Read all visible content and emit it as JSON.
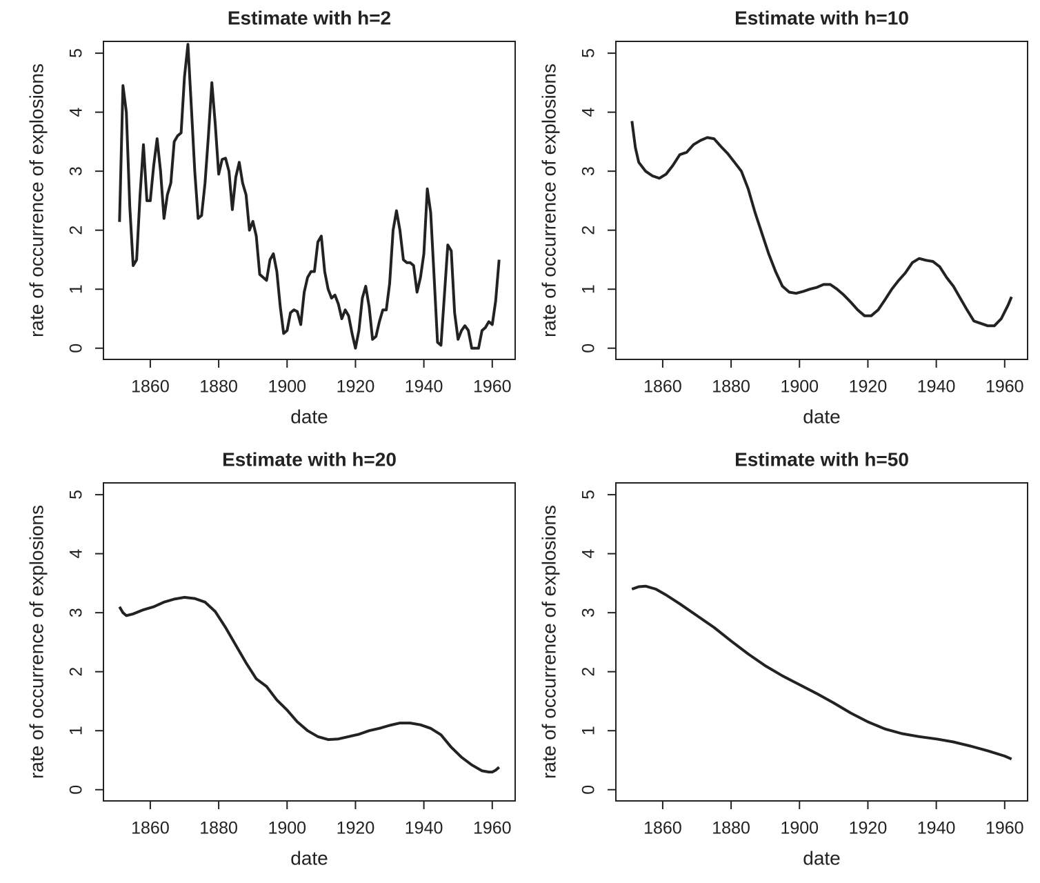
{
  "chart_data": [
    {
      "type": "line",
      "title": "Estimate with h=2",
      "xlabel": "date",
      "ylabel": "rate of occurrence of explosions",
      "color": "#222222",
      "x": [
        1851,
        1852,
        1853,
        1854,
        1855,
        1856,
        1857,
        1858,
        1859,
        1860,
        1861,
        1862,
        1863,
        1864,
        1865,
        1866,
        1867,
        1868,
        1869,
        1870,
        1871,
        1872,
        1873,
        1874,
        1875,
        1876,
        1877,
        1878,
        1879,
        1880,
        1881,
        1882,
        1883,
        1884,
        1885,
        1886,
        1887,
        1888,
        1889,
        1890,
        1891,
        1892,
        1893,
        1894,
        1895,
        1896,
        1897,
        1898,
        1899,
        1900,
        1901,
        1902,
        1903,
        1904,
        1905,
        1906,
        1907,
        1908,
        1909,
        1910,
        1911,
        1912,
        1913,
        1914,
        1915,
        1916,
        1917,
        1918,
        1919,
        1920,
        1921,
        1922,
        1923,
        1924,
        1925,
        1926,
        1927,
        1928,
        1929,
        1930,
        1931,
        1932,
        1933,
        1934,
        1935,
        1936,
        1937,
        1938,
        1939,
        1940,
        1941,
        1942,
        1943,
        1944,
        1945,
        1946,
        1947,
        1948,
        1949,
        1950,
        1951,
        1952,
        1953,
        1954,
        1955,
        1956,
        1957,
        1958,
        1959,
        1960,
        1961,
        1962
      ],
      "values": [
        2.14,
        4.45,
        4.0,
        2.4,
        1.4,
        1.5,
        2.6,
        3.45,
        2.5,
        2.5,
        3.1,
        3.55,
        3.0,
        2.2,
        2.6,
        2.8,
        3.5,
        3.6,
        3.65,
        4.6,
        5.15,
        4.1,
        3.0,
        2.2,
        2.25,
        2.8,
        3.6,
        4.5,
        3.8,
        2.95,
        3.2,
        3.22,
        3.0,
        2.35,
        2.9,
        3.15,
        2.8,
        2.6,
        2.0,
        2.15,
        1.9,
        1.25,
        1.2,
        1.15,
        1.5,
        1.6,
        1.3,
        0.7,
        0.25,
        0.3,
        0.6,
        0.65,
        0.62,
        0.4,
        0.95,
        1.2,
        1.3,
        1.3,
        1.8,
        1.9,
        1.3,
        1.0,
        0.85,
        0.9,
        0.75,
        0.5,
        0.65,
        0.55,
        0.25,
        0.0,
        0.3,
        0.85,
        1.05,
        0.7,
        0.15,
        0.2,
        0.45,
        0.65,
        0.65,
        1.1,
        2.0,
        2.33,
        2.0,
        1.5,
        1.45,
        1.45,
        1.4,
        0.95,
        1.2,
        1.6,
        2.7,
        2.3,
        1.2,
        0.1,
        0.05,
        0.9,
        1.75,
        1.65,
        0.6,
        0.15,
        0.3,
        0.38,
        0.3,
        0.0,
        0.0,
        0.0,
        0.3,
        0.35,
        0.45,
        0.4,
        0.8,
        1.5
      ],
      "xlim": [
        1846.3,
        1966.7
      ],
      "ylim": [
        -0.19,
        5.2
      ],
      "xticks": [
        1860,
        1880,
        1900,
        1920,
        1940,
        1960
      ],
      "yticks": [
        0,
        1,
        2,
        3,
        4,
        5
      ]
    },
    {
      "type": "line",
      "title": "Estimate with h=10",
      "xlabel": "date",
      "ylabel": "rate of occurrence of explosions",
      "color": "#222222",
      "x": [
        1851,
        1852,
        1853,
        1855,
        1857,
        1859,
        1861,
        1863,
        1865,
        1867,
        1869,
        1871,
        1873,
        1875,
        1877,
        1879,
        1881,
        1883,
        1885,
        1887,
        1889,
        1891,
        1893,
        1895,
        1897,
        1899,
        1901,
        1903,
        1905,
        1907,
        1909,
        1911,
        1913,
        1915,
        1917,
        1919,
        1921,
        1923,
        1925,
        1927,
        1929,
        1931,
        1933,
        1935,
        1937,
        1939,
        1941,
        1943,
        1945,
        1947,
        1949,
        1951,
        1953,
        1955,
        1957,
        1959,
        1961,
        1962
      ],
      "values": [
        3.85,
        3.4,
        3.15,
        3.0,
        2.92,
        2.88,
        2.95,
        3.1,
        3.28,
        3.32,
        3.45,
        3.52,
        3.57,
        3.55,
        3.42,
        3.3,
        3.15,
        3.0,
        2.7,
        2.3,
        1.95,
        1.6,
        1.3,
        1.05,
        0.95,
        0.93,
        0.96,
        1.0,
        1.03,
        1.08,
        1.08,
        1.0,
        0.9,
        0.78,
        0.65,
        0.55,
        0.55,
        0.65,
        0.82,
        1.0,
        1.15,
        1.28,
        1.45,
        1.52,
        1.49,
        1.47,
        1.38,
        1.2,
        1.05,
        0.85,
        0.65,
        0.46,
        0.42,
        0.38,
        0.38,
        0.5,
        0.73,
        0.87
      ],
      "xlim": [
        1846.3,
        1966.7
      ],
      "ylim": [
        -0.19,
        5.2
      ],
      "xticks": [
        1860,
        1880,
        1900,
        1920,
        1940,
        1960
      ],
      "yticks": [
        0,
        1,
        2,
        3,
        4,
        5
      ]
    },
    {
      "type": "line",
      "title": "Estimate with h=20",
      "xlabel": "date",
      "ylabel": "rate of occurrence of explosions",
      "color": "#222222",
      "x": [
        1851,
        1852,
        1853,
        1855,
        1858,
        1861,
        1864,
        1867,
        1870,
        1873,
        1876,
        1879,
        1882,
        1885,
        1888,
        1891,
        1894,
        1897,
        1900,
        1903,
        1906,
        1909,
        1912,
        1915,
        1918,
        1921,
        1924,
        1927,
        1930,
        1933,
        1936,
        1939,
        1942,
        1945,
        1948,
        1951,
        1954,
        1957,
        1959,
        1960,
        1961,
        1962
      ],
      "values": [
        3.1,
        3.0,
        2.95,
        2.98,
        3.05,
        3.1,
        3.18,
        3.23,
        3.26,
        3.24,
        3.18,
        3.02,
        2.75,
        2.45,
        2.15,
        1.88,
        1.75,
        1.52,
        1.35,
        1.15,
        1.0,
        0.9,
        0.85,
        0.86,
        0.9,
        0.94,
        1.0,
        1.04,
        1.09,
        1.13,
        1.13,
        1.1,
        1.04,
        0.93,
        0.72,
        0.55,
        0.42,
        0.32,
        0.3,
        0.3,
        0.33,
        0.38
      ],
      "xlim": [
        1846.3,
        1966.7
      ],
      "ylim": [
        -0.19,
        5.2
      ],
      "xticks": [
        1860,
        1880,
        1900,
        1920,
        1940,
        1960
      ],
      "yticks": [
        0,
        1,
        2,
        3,
        4,
        5
      ]
    },
    {
      "type": "line",
      "title": "Estimate with h=50",
      "xlabel": "date",
      "ylabel": "rate of occurrence of explosions",
      "color": "#222222",
      "x": [
        1851,
        1853,
        1855,
        1858,
        1861,
        1865,
        1870,
        1875,
        1880,
        1885,
        1890,
        1895,
        1900,
        1905,
        1910,
        1915,
        1920,
        1925,
        1930,
        1935,
        1940,
        1945,
        1950,
        1955,
        1960,
        1962
      ],
      "values": [
        3.4,
        3.44,
        3.45,
        3.4,
        3.3,
        3.15,
        2.95,
        2.75,
        2.52,
        2.3,
        2.1,
        1.93,
        1.78,
        1.63,
        1.47,
        1.3,
        1.15,
        1.03,
        0.95,
        0.9,
        0.86,
        0.81,
        0.74,
        0.66,
        0.57,
        0.52
      ],
      "xlim": [
        1846.3,
        1966.7
      ],
      "ylim": [
        -0.19,
        5.2
      ],
      "xticks": [
        1860,
        1880,
        1900,
        1920,
        1940,
        1960
      ],
      "yticks": [
        0,
        1,
        2,
        3,
        4,
        5
      ]
    }
  ]
}
